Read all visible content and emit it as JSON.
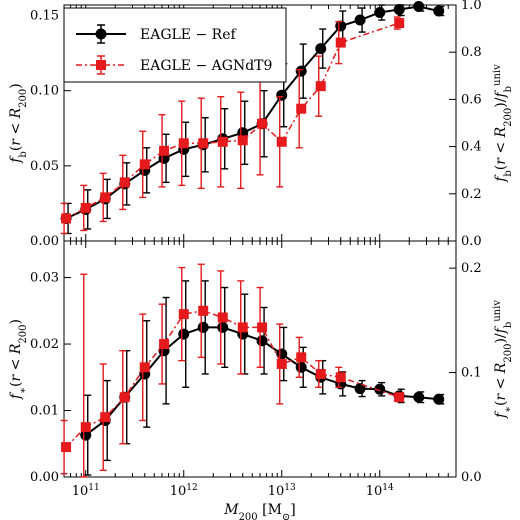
{
  "chart_data": [
    {
      "type": "line",
      "ylabel": "f_b(r < R_200)",
      "ylabel_right": "f_b(r < R_200)/f_b^univ",
      "xscale": "log",
      "xlim": [
        60000000000.0,
        600000000000000.0
      ],
      "ylim": [
        0,
        0.157
      ],
      "ylim_right": [
        0,
        1.0
      ],
      "yticks": [
        "0.00",
        "0.05",
        "0.10",
        "0.15"
      ],
      "yticks_right": [
        "0.0",
        "0.2",
        "0.4",
        "0.6",
        "0.8",
        "1.0"
      ],
      "legend": {
        "position": "top-left",
        "entries": [
          "EAGLE − Ref",
          "EAGLE − AGNdT9"
        ]
      },
      "series": [
        {
          "name": "EAGLE − Ref",
          "marker": "circle",
          "color": "#000000",
          "linestyle": "solid",
          "x": [
            63000000000.0,
            100000000000.0,
            158000000000.0,
            250000000000.0,
            400000000000.0,
            630000000000.0,
            1000000000000.0,
            1580000000000.0,
            2500000000000.0,
            4000000000000.0,
            6300000000000.0,
            10000000000000.0,
            15800000000000.0,
            25000000000000.0,
            40000000000000.0,
            63000000000000.0,
            100000000000000.0,
            158000000000000.0,
            250000000000000.0,
            400000000000000.0
          ],
          "y": [
            0.015,
            0.021,
            0.028,
            0.038,
            0.047,
            0.055,
            0.061,
            0.064,
            0.068,
            0.072,
            0.078,
            0.097,
            0.113,
            0.128,
            0.143,
            0.147,
            0.152,
            0.154,
            0.156,
            0.153
          ],
          "err": [
            0.01,
            0.013,
            0.013,
            0.014,
            0.015,
            0.016,
            0.018,
            0.018,
            0.02,
            0.021,
            0.022,
            0.021,
            0.018,
            0.013,
            0.01,
            0.008,
            0.005,
            0.004,
            0.003,
            0.003
          ]
        },
        {
          "name": "EAGLE − AGNdT9",
          "marker": "square",
          "color": "#e41a1c",
          "linestyle": "dashdot",
          "x": [
            63000000000.0,
            100000000000.0,
            158000000000.0,
            250000000000.0,
            400000000000.0,
            630000000000.0,
            1000000000000.0,
            1580000000000.0,
            2500000000000.0,
            4000000000000.0,
            6300000000000.0,
            10000000000000.0,
            15800000000000.0,
            25000000000000.0,
            40000000000000.0,
            158000000000000.0
          ],
          "y": [
            0.015,
            0.022,
            0.029,
            0.039,
            0.051,
            0.06,
            0.065,
            0.065,
            0.066,
            0.067,
            0.078,
            0.066,
            0.088,
            0.103,
            0.132,
            0.145
          ],
          "err": [
            0.01,
            0.015,
            0.016,
            0.018,
            0.022,
            0.024,
            0.028,
            0.03,
            0.03,
            0.032,
            0.034,
            0.03,
            0.026,
            0.02,
            0.014,
            0.004
          ]
        }
      ]
    },
    {
      "type": "line",
      "xlabel": "M_200 [M_⊙]",
      "ylabel": "f_∗(r < R_200)",
      "ylabel_right": "f_∗(r < R_200)/f_b^univ",
      "xscale": "log",
      "xlim": [
        60000000000.0,
        600000000000000.0
      ],
      "ylim": [
        0,
        0.0355
      ],
      "ylim_right": [
        0,
        0.226
      ],
      "yticks": [
        "0.00",
        "0.01",
        "0.02",
        "0.03"
      ],
      "yticks_right": [
        "0.0",
        "0.1",
        "0.2"
      ],
      "xticks": [
        "10^11",
        "10^12",
        "10^13",
        "10^14"
      ],
      "series": [
        {
          "name": "EAGLE − Ref",
          "marker": "circle",
          "color": "#000000",
          "linestyle": "solid",
          "x": [
            100000000000.0,
            158000000000.0,
            250000000000.0,
            400000000000.0,
            630000000000.0,
            1000000000000.0,
            1580000000000.0,
            2500000000000.0,
            4000000000000.0,
            6300000000000.0,
            10000000000000.0,
            15800000000000.0,
            25000000000000.0,
            40000000000000.0,
            63000000000000.0,
            100000000000000.0,
            158000000000000.0,
            250000000000000.0,
            400000000000000.0
          ],
          "y": [
            0.0063,
            0.0085,
            0.012,
            0.0155,
            0.019,
            0.0215,
            0.0225,
            0.0225,
            0.0215,
            0.0205,
            0.0185,
            0.0165,
            0.015,
            0.014,
            0.0133,
            0.0132,
            0.0122,
            0.012,
            0.0117
          ],
          "err": [
            0.006,
            0.006,
            0.007,
            0.008,
            0.008,
            0.008,
            0.007,
            0.006,
            0.006,
            0.005,
            0.004,
            0.003,
            0.0025,
            0.0018,
            0.0012,
            0.001,
            0.001,
            0.0008,
            0.0007
          ]
        },
        {
          "name": "EAGLE − AGNdT9",
          "marker": "square",
          "color": "#e41a1c",
          "linestyle": "dashdot",
          "x": [
            63000000000.0,
            100000000000.0,
            158000000000.0,
            250000000000.0,
            400000000000.0,
            630000000000.0,
            1000000000000.0,
            1580000000000.0,
            2500000000000.0,
            4000000000000.0,
            6300000000000.0,
            10000000000000.0,
            15800000000000.0,
            25000000000000.0,
            40000000000000.0,
            158000000000000.0
          ],
          "y": [
            0.0045,
            0.0075,
            0.009,
            0.012,
            0.0165,
            0.02,
            0.0245,
            0.025,
            0.024,
            0.0225,
            0.0225,
            0.017,
            0.018,
            0.0155,
            0.015,
            0.012
          ],
          "err": [
            0.004,
            0.023,
            0.008,
            0.007,
            0.008,
            0.006,
            0.007,
            0.007,
            0.007,
            0.007,
            0.006,
            0.006,
            0.003,
            0.002,
            0.0015,
            0.0005
          ]
        }
      ]
    }
  ]
}
